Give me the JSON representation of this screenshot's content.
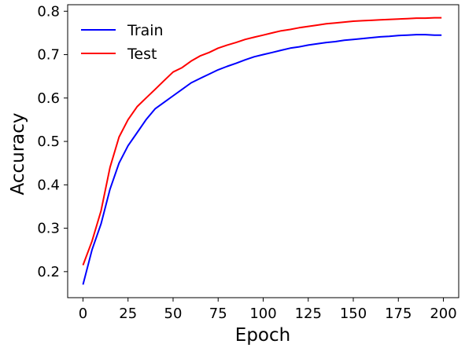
{
  "chart_data": {
    "type": "line",
    "xlabel": "Epoch",
    "ylabel": "Accuracy",
    "xlim": [
      -8.5,
      208.5
    ],
    "ylim": [
      0.14,
      0.815
    ],
    "x_ticks": [
      0,
      25,
      50,
      75,
      100,
      125,
      150,
      175,
      200
    ],
    "x_tick_labels": [
      "0",
      "25",
      "50",
      "75",
      "100",
      "125",
      "150",
      "175",
      "200"
    ],
    "y_ticks": [
      0.2,
      0.3,
      0.4,
      0.5,
      0.6,
      0.7,
      0.8
    ],
    "y_tick_labels": [
      "0.2",
      "0.3",
      "0.4",
      "0.5",
      "0.6",
      "0.7",
      "0.8"
    ],
    "grid": false,
    "legend_position": "top-left",
    "x": [
      0,
      5,
      10,
      15,
      20,
      25,
      30,
      35,
      40,
      45,
      50,
      55,
      60,
      65,
      70,
      75,
      80,
      85,
      90,
      95,
      100,
      105,
      110,
      115,
      120,
      125,
      130,
      135,
      140,
      145,
      150,
      155,
      160,
      165,
      170,
      175,
      180,
      185,
      190,
      195,
      199
    ],
    "series": [
      {
        "name": "Train",
        "color": "#0000ff",
        "values": [
          0.17,
          0.25,
          0.31,
          0.39,
          0.45,
          0.49,
          0.52,
          0.55,
          0.575,
          0.59,
          0.605,
          0.62,
          0.635,
          0.645,
          0.655,
          0.665,
          0.673,
          0.68,
          0.688,
          0.695,
          0.7,
          0.705,
          0.71,
          0.715,
          0.718,
          0.722,
          0.725,
          0.728,
          0.73,
          0.733,
          0.735,
          0.737,
          0.739,
          0.741,
          0.742,
          0.744,
          0.745,
          0.746,
          0.746,
          0.745,
          0.745
        ]
      },
      {
        "name": "Test",
        "color": "#ff0000",
        "values": [
          0.215,
          0.27,
          0.34,
          0.44,
          0.51,
          0.55,
          0.58,
          0.6,
          0.62,
          0.64,
          0.66,
          0.67,
          0.685,
          0.697,
          0.705,
          0.715,
          0.722,
          0.728,
          0.735,
          0.74,
          0.745,
          0.75,
          0.755,
          0.758,
          0.762,
          0.765,
          0.768,
          0.771,
          0.773,
          0.775,
          0.777,
          0.778,
          0.779,
          0.78,
          0.781,
          0.782,
          0.783,
          0.784,
          0.784,
          0.785,
          0.785
        ]
      }
    ]
  }
}
